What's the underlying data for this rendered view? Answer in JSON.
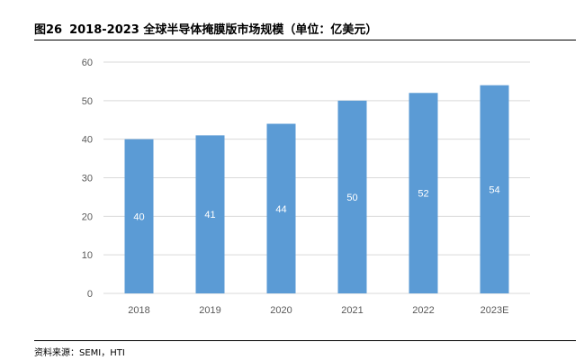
{
  "figure_label": "图26",
  "title": "2018-2023 全球半导体掩膜版市场规模（单位：亿美元）",
  "source": "资料来源：SEMI，HTI",
  "colors": {
    "bar": "#5b9bd5",
    "gridline": "#d9d9d9",
    "axis_text": "#595959",
    "bar_label": "#ffffff"
  },
  "chart_data": {
    "type": "bar",
    "categories": [
      "2018",
      "2019",
      "2020",
      "2021",
      "2022",
      "2023E"
    ],
    "values": [
      40,
      41,
      44,
      50,
      52,
      54
    ],
    "data_labels": [
      "40",
      "41",
      "44",
      "50",
      "52",
      "54"
    ],
    "title": "2018-2023 全球半导体掩膜版市场规模（单位：亿美元）",
    "xlabel": "",
    "ylabel": "",
    "ylim": [
      0,
      60
    ],
    "yticks": [
      0,
      10,
      20,
      30,
      40,
      50,
      60
    ],
    "grid": true,
    "legend": "none"
  }
}
